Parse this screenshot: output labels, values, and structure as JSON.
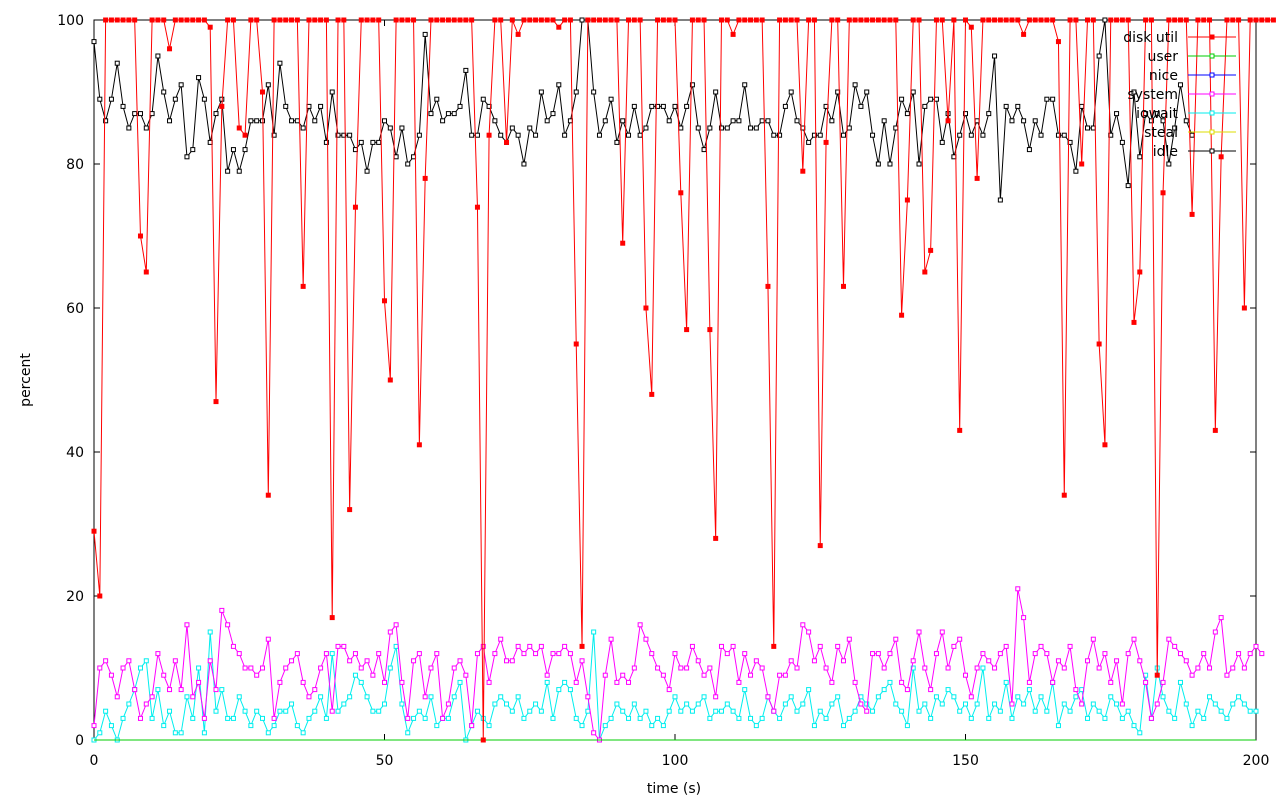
{
  "chart_data": {
    "type": "line",
    "title": "",
    "xlabel": "time (s)",
    "ylabel": "percent",
    "xlim": [
      0,
      200
    ],
    "ylim": [
      0,
      100
    ],
    "xticks": [
      0,
      50,
      100,
      150,
      200
    ],
    "yticks": [
      0,
      20,
      40,
      60,
      80,
      100
    ],
    "grid": false,
    "legend_position": "top-right",
    "x_start": 0,
    "x_step": 1,
    "series": [
      {
        "name": "disk util",
        "color": "#ff0000",
        "marker": "filled-square",
        "values": [
          29,
          20,
          100,
          100,
          100,
          100,
          100,
          100,
          70,
          65,
          100,
          100,
          100,
          96,
          100,
          100,
          100,
          100,
          100,
          100,
          99,
          47,
          88,
          100,
          100,
          85,
          84,
          100,
          100,
          90,
          34,
          100,
          100,
          100,
          100,
          100,
          63,
          100,
          100,
          100,
          100,
          17,
          100,
          100,
          32,
          74,
          100,
          100,
          100,
          100,
          61,
          50,
          100,
          100,
          100,
          100,
          41,
          78,
          100,
          100,
          100,
          100,
          100,
          100,
          100,
          100,
          74,
          0,
          84,
          100,
          100,
          83,
          100,
          98,
          100,
          100,
          100,
          100,
          100,
          100,
          99,
          100,
          100,
          55,
          13,
          100,
          100,
          100,
          100,
          100,
          100,
          69,
          100,
          100,
          100,
          60,
          48,
          100,
          100,
          100,
          100,
          76,
          57,
          100,
          100,
          100,
          57,
          28,
          100,
          100,
          98,
          100,
          100,
          100,
          100,
          100,
          63,
          13,
          100,
          100,
          100,
          100,
          79,
          100,
          100,
          27,
          83,
          100,
          100,
          63,
          100,
          100,
          100,
          100,
          100,
          100,
          100,
          100,
          100,
          59,
          75,
          100,
          100,
          65,
          68,
          100,
          100,
          86,
          100,
          43,
          100,
          99,
          78,
          100,
          100,
          100,
          100,
          100,
          100,
          100,
          98,
          100,
          100,
          100,
          100,
          100,
          97,
          34,
          100,
          100,
          80,
          100,
          100,
          55,
          41,
          100,
          100,
          100,
          100,
          58,
          65,
          100,
          100,
          9,
          76,
          100,
          100,
          100,
          100,
          73,
          100,
          100,
          100,
          43,
          81,
          100,
          100,
          100,
          60,
          100,
          100,
          100,
          100,
          100
        ]
      },
      {
        "name": "user",
        "color": "#00cc00",
        "marker": "open-square",
        "values": []
      },
      {
        "name": "nice",
        "color": "#0000ff",
        "marker": "open-square",
        "values": []
      },
      {
        "name": "system",
        "color": "#ff00ff",
        "marker": "open-square",
        "values": [
          2,
          10,
          11,
          9,
          6,
          10,
          11,
          7,
          3,
          5,
          6,
          12,
          9,
          7,
          11,
          7,
          16,
          6,
          8,
          3,
          11,
          7,
          18,
          16,
          13,
          12,
          10,
          10,
          9,
          10,
          14,
          3,
          8,
          10,
          11,
          12,
          8,
          6,
          7,
          10,
          12,
          4,
          13,
          13,
          11,
          12,
          10,
          11,
          9,
          12,
          8,
          15,
          16,
          8,
          3,
          11,
          12,
          6,
          10,
          12,
          3,
          5,
          10,
          11,
          9,
          2,
          12,
          13,
          8,
          12,
          14,
          11,
          11,
          13,
          12,
          13,
          12,
          13,
          9,
          12,
          12,
          13,
          12,
          8,
          11,
          6,
          1,
          0,
          9,
          14,
          8,
          9,
          8,
          10,
          16,
          14,
          12,
          10,
          9,
          7,
          12,
          10,
          10,
          13,
          11,
          9,
          10,
          6,
          13,
          12,
          13,
          8,
          12,
          9,
          11,
          10,
          6,
          4,
          9,
          9,
          11,
          10,
          16,
          15,
          11,
          13,
          10,
          8,
          13,
          11,
          14,
          8,
          5,
          4,
          12,
          12,
          10,
          12,
          14,
          8,
          7,
          11,
          15,
          10,
          7,
          12,
          15,
          10,
          13,
          14,
          9,
          6,
          10,
          12,
          11,
          10,
          12,
          13,
          5,
          21,
          17,
          8,
          12,
          13,
          12,
          8,
          11,
          10,
          13,
          7,
          5,
          11,
          14,
          10,
          12,
          8,
          11,
          5,
          12,
          14,
          11,
          8,
          3,
          5,
          8,
          14,
          13,
          12,
          11,
          9,
          10,
          12,
          10,
          15,
          17,
          9,
          10,
          12,
          10,
          12,
          13,
          12
        ]
      },
      {
        "name": "iowait",
        "color": "#00eeee",
        "marker": "open-square",
        "values": [
          0,
          1,
          4,
          2,
          0,
          3,
          5,
          7,
          10,
          11,
          3,
          7,
          2,
          4,
          1,
          1,
          6,
          3,
          10,
          1,
          15,
          4,
          7,
          3,
          3,
          6,
          4,
          2,
          4,
          3,
          1,
          2,
          4,
          4,
          5,
          2,
          1,
          3,
          4,
          6,
          3,
          12,
          4,
          5,
          6,
          9,
          8,
          6,
          4,
          4,
          5,
          10,
          13,
          5,
          1,
          3,
          4,
          3,
          6,
          2,
          3,
          3,
          6,
          8,
          0,
          2,
          4,
          3,
          2,
          5,
          6,
          5,
          4,
          6,
          3,
          4,
          5,
          4,
          8,
          3,
          7,
          8,
          7,
          3,
          2,
          4,
          15,
          0,
          2,
          3,
          5,
          4,
          3,
          5,
          3,
          4,
          2,
          3,
          2,
          4,
          6,
          4,
          5,
          4,
          5,
          6,
          3,
          4,
          4,
          5,
          4,
          3,
          7,
          3,
          2,
          3,
          6,
          4,
          3,
          5,
          6,
          4,
          5,
          7,
          2,
          4,
          3,
          5,
          6,
          2,
          3,
          4,
          6,
          5,
          4,
          6,
          7,
          8,
          5,
          4,
          2,
          10,
          4,
          5,
          3,
          6,
          5,
          7,
          6,
          4,
          5,
          3,
          5,
          10,
          3,
          5,
          4,
          8,
          3,
          6,
          5,
          7,
          4,
          6,
          4,
          8,
          2,
          5,
          4,
          6,
          7,
          3,
          5,
          4,
          3,
          6,
          5,
          3,
          4,
          2,
          1,
          9,
          3,
          10,
          6,
          4,
          3,
          8,
          5,
          2,
          4,
          3,
          6,
          5,
          4,
          3,
          5,
          6,
          5,
          4,
          4
        ]
      },
      {
        "name": "steal",
        "color": "#dddd00",
        "marker": "open-square",
        "values": []
      },
      {
        "name": "idle",
        "color": "#000000",
        "marker": "open-square",
        "values": [
          97,
          89,
          86,
          89,
          94,
          88,
          85,
          87,
          87,
          85,
          87,
          95,
          90,
          86,
          89,
          91,
          81,
          82,
          92,
          89,
          83,
          87,
          89,
          79,
          82,
          79,
          82,
          86,
          86,
          86,
          91,
          84,
          94,
          88,
          86,
          86,
          85,
          88,
          86,
          88,
          83,
          90,
          84,
          84,
          84,
          82,
          83,
          79,
          83,
          83,
          86,
          85,
          81,
          85,
          80,
          81,
          84,
          98,
          87,
          89,
          86,
          87,
          87,
          88,
          93,
          84,
          84,
          89,
          88,
          86,
          84,
          83,
          85,
          84,
          80,
          85,
          84,
          90,
          86,
          87,
          91,
          84,
          86,
          90,
          100,
          100,
          90,
          84,
          86,
          89,
          83,
          86,
          84,
          88,
          84,
          85,
          88,
          88,
          88,
          86,
          88,
          85,
          88,
          91,
          85,
          82,
          85,
          90,
          85,
          85,
          86,
          86,
          91,
          85,
          85,
          86,
          86,
          84,
          84,
          88,
          90,
          86,
          85,
          83,
          84,
          84,
          88,
          86,
          90,
          84,
          85,
          91,
          88,
          90,
          84,
          80,
          86,
          80,
          85,
          89,
          87,
          90,
          80,
          88,
          89,
          89,
          83,
          87,
          81,
          84,
          87,
          84,
          86,
          84,
          87,
          95,
          75,
          88,
          86,
          88,
          86,
          82,
          86,
          84,
          89,
          89,
          84,
          84,
          83,
          79,
          88,
          85,
          85,
          95,
          100,
          84,
          87,
          83,
          77,
          90,
          81,
          87,
          86,
          87,
          86,
          80,
          85,
          91,
          86,
          84
        ]
      }
    ]
  }
}
